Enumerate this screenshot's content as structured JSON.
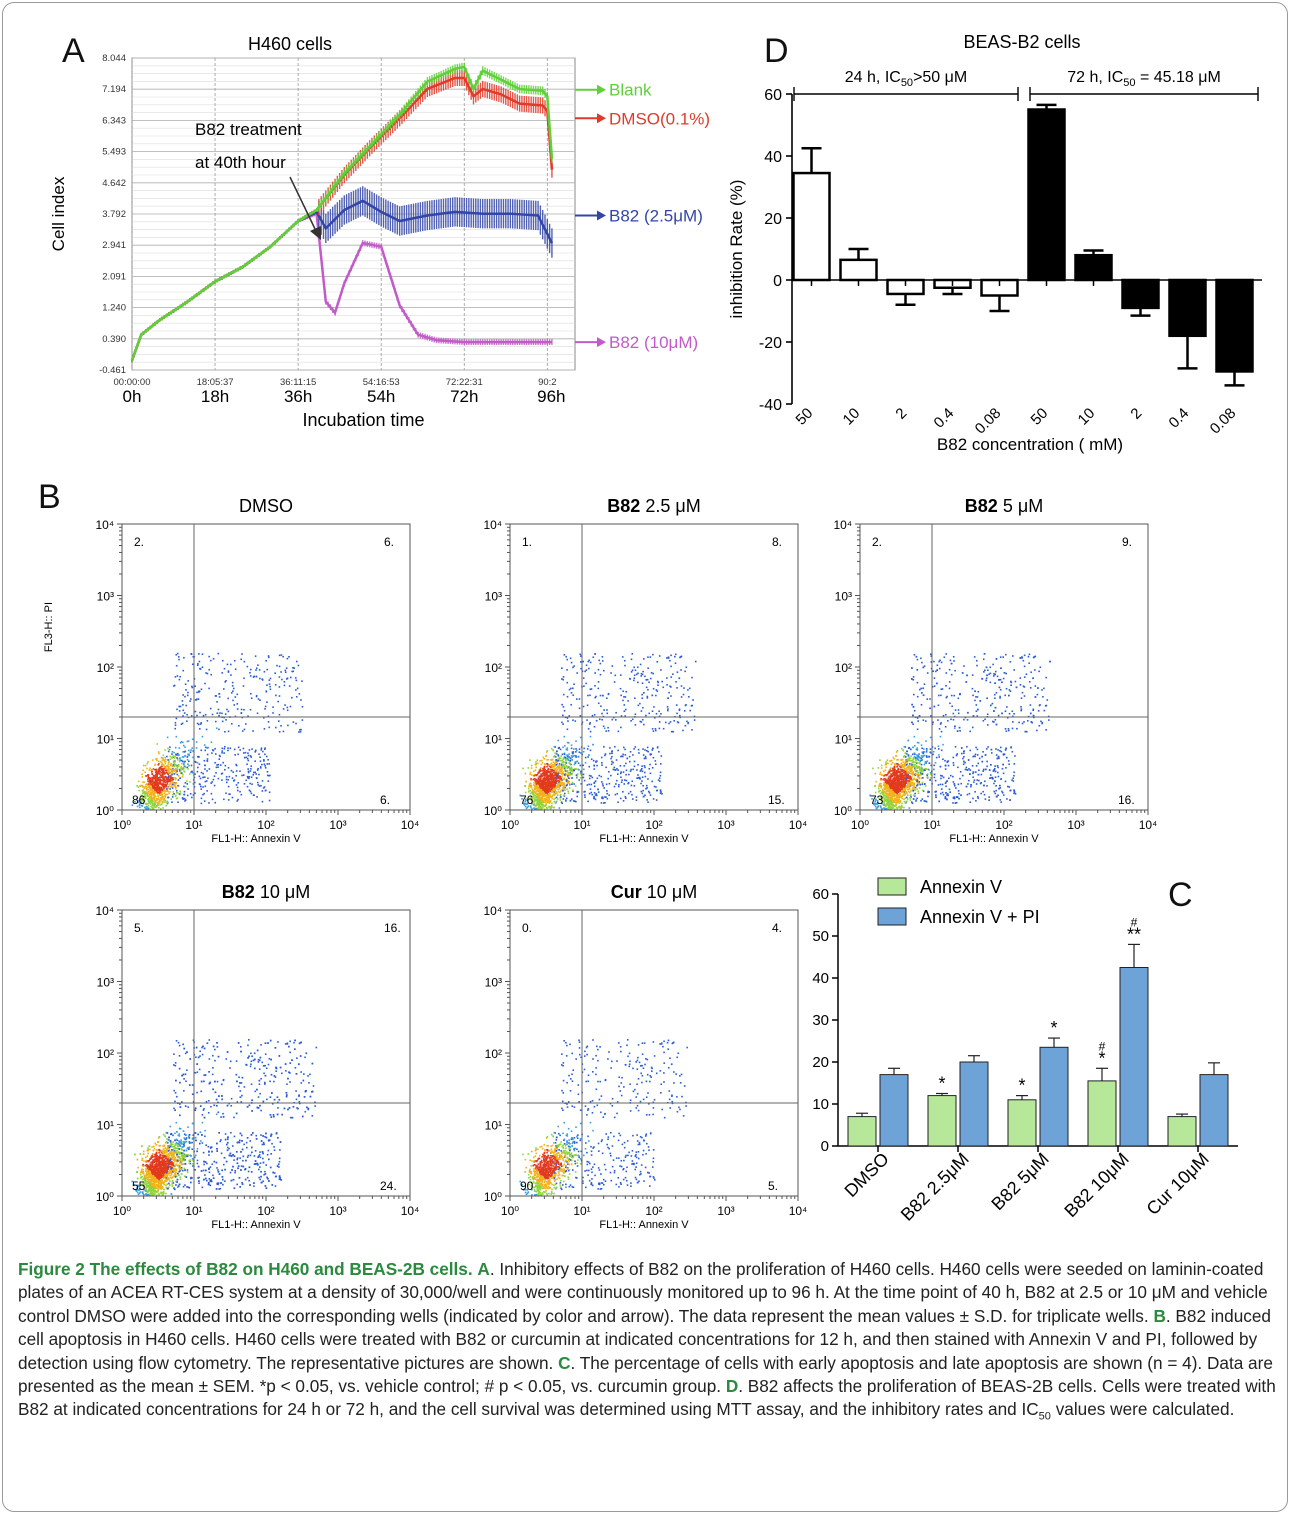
{
  "panel_a": {
    "letter": "A",
    "title": "H460 cells",
    "ylabel": "Cell index",
    "xlabel": "Incubation time",
    "annotation_line1": "B82 treatment",
    "annotation_line2": "at 40th hour",
    "colors": {
      "Blank": "#5fcf3a",
      "DMSO": "#e03a2a",
      "B82_2_5": "#3346a8",
      "B82_10": "#c25bc8"
    }
  },
  "panel_b": {
    "letter": "B",
    "ylabel": "FL3-H:: PI",
    "xlabel": "FL1-H:: Annexin V"
  },
  "panel_c": {
    "letter": "C",
    "legend": [
      "Annexin V",
      "Annexin V + PI"
    ]
  },
  "panel_d": {
    "letter": "D",
    "title": "BEAS-B2 cells",
    "ylabel": "inhibition  Rate (%)",
    "xlabel": "B82 concentration (   mM)",
    "bracket_24h": "24 h, IC",
    "bracket_24h_sub": "50",
    "bracket_24h_tail": ">50 μM",
    "bracket_72h": "72 h, IC",
    "bracket_72h_sub": "50",
    "bracket_72h_tail": " = 45.18 μM"
  },
  "chart_data": [
    {
      "panel": "A",
      "type": "line",
      "title": "H460 cells",
      "xlabel": "Incubation time",
      "ylabel": "Cell index",
      "x_ticks_top": [
        "00:00:00",
        "18:05:37",
        "36:11:15",
        "54:16:53",
        "72:22:31",
        "90:2"
      ],
      "x_ticks_bottom": [
        "0h",
        "18h",
        "36h",
        "54h",
        "72h",
        "96h"
      ],
      "y_ticks": [
        "8.044",
        "7.194",
        "6.343",
        "5.493",
        "4.642",
        "3.792",
        "2.941",
        "2.091",
        "1.240",
        "0.390",
        "-0.461"
      ],
      "ylim": [
        -0.461,
        8.044
      ],
      "xlim": [
        0,
        96
      ],
      "series": [
        {
          "name": "Blank",
          "x": [
            0,
            2,
            6,
            12,
            18,
            24,
            30,
            36,
            40,
            46,
            52,
            58,
            64,
            70,
            72,
            74,
            76,
            80,
            84,
            89,
            90,
            91
          ],
          "y": [
            -0.2,
            0.5,
            0.9,
            1.4,
            1.95,
            2.35,
            2.9,
            3.6,
            3.9,
            4.9,
            5.7,
            6.5,
            7.4,
            7.75,
            7.8,
            7.2,
            7.7,
            7.45,
            7.2,
            7.15,
            7.0,
            5.3
          ]
        },
        {
          "name": "DMSO(0.1%)",
          "x": [
            0,
            2,
            6,
            12,
            18,
            24,
            30,
            36,
            40,
            46,
            52,
            58,
            64,
            70,
            72,
            74,
            76,
            80,
            84,
            89,
            90,
            91
          ],
          "y": [
            -0.2,
            0.5,
            0.9,
            1.4,
            1.95,
            2.35,
            2.9,
            3.6,
            3.9,
            4.85,
            5.65,
            6.4,
            7.2,
            7.5,
            7.5,
            7.0,
            7.2,
            7.05,
            6.8,
            6.75,
            6.6,
            5.0
          ]
        },
        {
          "name": "B82 (2.5μM)",
          "x": [
            0,
            2,
            6,
            12,
            18,
            24,
            30,
            36,
            40,
            42,
            46,
            50,
            54,
            58,
            64,
            70,
            76,
            82,
            88,
            91
          ],
          "y": [
            -0.2,
            0.5,
            0.9,
            1.4,
            1.95,
            2.35,
            2.9,
            3.6,
            3.85,
            3.4,
            3.9,
            4.15,
            3.85,
            3.6,
            3.75,
            3.85,
            3.8,
            3.8,
            3.75,
            3.0
          ]
        },
        {
          "name": "B82 (10μM)",
          "x": [
            0,
            2,
            6,
            12,
            18,
            24,
            30,
            36,
            40,
            42,
            44,
            46,
            50,
            54,
            58,
            62,
            66,
            72,
            80,
            91
          ],
          "y": [
            -0.2,
            0.5,
            0.9,
            1.4,
            1.95,
            2.35,
            2.9,
            3.6,
            3.8,
            1.4,
            1.1,
            1.9,
            3.0,
            2.9,
            1.3,
            0.5,
            0.35,
            0.3,
            0.3,
            0.3
          ]
        }
      ],
      "labels": [
        "Blank",
        "DMSO(0.1%)",
        "B82 (2.5μM)",
        "B82 (10μM)"
      ]
    },
    {
      "panel": "B",
      "type": "scatter",
      "xlabel": "FL1-H:: Annexin V",
      "ylabel": "FL3-H:: PI",
      "x_ticks": [
        "10⁰",
        "10¹",
        "10²",
        "10³",
        "10⁴"
      ],
      "y_ticks": [
        "10⁰",
        "10¹",
        "10²",
        "10³",
        "10⁴"
      ],
      "plots": [
        {
          "title": "DMSO",
          "title_bold": "",
          "title_rest": "DMSO",
          "q_ul": "2.",
          "q_ur": "6.",
          "q_ll": "86",
          "q_lr": "6.",
          "spread": 0.35,
          "n": 1500
        },
        {
          "title": "B82 2.5 μM",
          "title_bold": "B82",
          "title_rest": " 2.5 μM",
          "q_ul": "1.",
          "q_ur": "8.",
          "q_ll": "76",
          "q_lr": "15.",
          "spread": 0.4,
          "n": 1900
        },
        {
          "title": "B82 5 μM",
          "title_bold": "B82",
          "title_rest": " 5 μM",
          "q_ul": "2.",
          "q_ur": "9.",
          "q_ll": "73",
          "q_lr": "16.",
          "spread": 0.45,
          "n": 2300
        },
        {
          "title": "B82 10 μM",
          "title_bold": "B82",
          "title_rest": " 10 μM",
          "q_ul": "5.",
          "q_ur": "16.",
          "q_ll": "55",
          "q_lr": "24.",
          "spread": 0.5,
          "n": 2800
        },
        {
          "title": "Cur 10 μM",
          "title_bold": "Cur",
          "title_rest": " 10 μM",
          "q_ul": "0.",
          "q_ur": "4.",
          "q_ll": "90",
          "q_lr": "5.",
          "spread": 0.3,
          "n": 1300
        }
      ]
    },
    {
      "panel": "C",
      "type": "bar",
      "categories": [
        "DMSO",
        "B82  2.5μM",
        "B82  5μM",
        "B82 10μM",
        "Cur 10μM"
      ],
      "ylim": [
        0,
        60
      ],
      "y_ticks": [
        "0",
        "10",
        "20",
        "30",
        "40",
        "50",
        "60"
      ],
      "series": [
        {
          "name": "Annexin V",
          "color": "#b7e89a",
          "values": [
            7,
            12,
            11,
            15.5,
            7
          ],
          "errors": [
            0.8,
            0.5,
            1.0,
            3.0,
            0.6
          ],
          "marks": [
            "",
            "*",
            "*",
            "#\n*",
            ""
          ]
        },
        {
          "name": "Annexin V + PI",
          "color": "#6ea3d8",
          "values": [
            17,
            20,
            23.5,
            42.5,
            17
          ],
          "errors": [
            1.5,
            1.5,
            2.2,
            5.5,
            2.8
          ],
          "marks": [
            "",
            "",
            "*",
            "#\n**",
            ""
          ]
        }
      ]
    },
    {
      "panel": "D",
      "type": "bar",
      "title": "BEAS-B2 cells",
      "xlabel": "B82 concentration (   mM)",
      "ylabel": "inhibition  Rate (%)",
      "ylim": [
        -40,
        60
      ],
      "y_ticks": [
        "-40",
        "-20",
        "0",
        "20",
        "40",
        "60"
      ],
      "categories": [
        "50",
        "10",
        "2",
        "0.4",
        "0.08",
        "50",
        "10",
        "2",
        "0.4",
        "0.08"
      ],
      "series": [
        {
          "name": "24 h",
          "fill": "#ffffff",
          "values": [
            34.5,
            6.5,
            -4.5,
            -2.5,
            -5,
            null,
            null,
            null,
            null,
            null
          ],
          "errors": [
            8,
            3.5,
            3.5,
            2,
            5,
            null,
            null,
            null,
            null,
            null
          ]
        },
        {
          "name": "72 h",
          "fill": "#000000",
          "values": [
            null,
            null,
            null,
            null,
            null,
            55,
            8,
            -9,
            -18,
            -29.5
          ],
          "errors": [
            null,
            null,
            null,
            null,
            null,
            1.5,
            1.5,
            2.5,
            10.5,
            4.5
          ]
        }
      ]
    }
  ],
  "caption": {
    "title": "Figure 2 The effects of B82 on H460 and BEAS-2B cells.",
    "a_letter": "A",
    "a_text": ". Inhibitory effects of B82 on the proliferation of H460 cells. H460 cells were seeded on laminin-coated plates of an ACEA RT-CES system at a density of 30,000/well and were continuously monitored up to 96 h. At the time point of 40 h, B82 at 2.5 or 10 μM and vehicle control DMSO were added into the corresponding wells (indicated by color and arrow). The data represent the mean values ± S.D. for triplicate wells. ",
    "b_letter": "B",
    "b_text": ". B82 induced cell apoptosis in H460 cells. H460 cells were treated with B82 or curcumin at indicated concentrations for 12 h, and then stained with Annexin V and PI, followed by detection using flow cytometry. The representative pictures are shown. ",
    "c_letter": "C",
    "c_text": ". The percentage of cells with early apoptosis and late apoptosis are shown (n = 4). Data are presented as the mean ± SEM. *p < 0.05, vs. vehicle control; # p < 0.05, vs. curcumin group. ",
    "d_letter": "D",
    "d_text": ". B82 affects the proliferation of BEAS-2B cells. Cells were treated with B82 at indicated concentrations for 24 h or 72 h, and the cell survival was determined using MTT assay, and the inhibitory rates and IC",
    "d_sub": "50",
    "d_tail": " values were calculated."
  }
}
